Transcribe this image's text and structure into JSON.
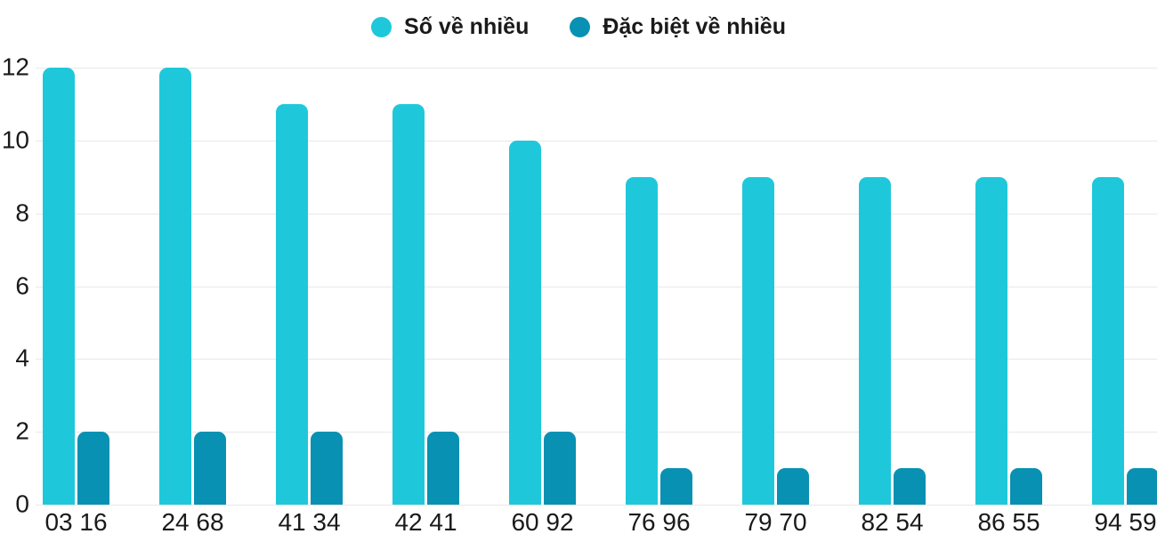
{
  "chart_data": {
    "type": "bar",
    "title": "",
    "xlabel": "",
    "ylabel": "",
    "categories": [
      "03 16",
      "24 68",
      "41 34",
      "42 41",
      "60 92",
      "76 96",
      "79 70",
      "82 54",
      "86 55",
      "94 59"
    ],
    "series": [
      {
        "name": "Số về nhiều",
        "color": "#1EC8DA",
        "values": [
          12,
          12,
          11,
          11,
          10,
          9,
          9,
          9,
          9,
          9
        ]
      },
      {
        "name": "Đặc biệt về nhiều",
        "color": "#0891B2",
        "values": [
          2,
          2,
          2,
          2,
          2,
          1,
          1,
          1,
          1,
          1
        ]
      }
    ],
    "ylim": [
      0,
      12
    ],
    "yticks": [
      0,
      2,
      4,
      6,
      8,
      10,
      12
    ],
    "grid": true,
    "legend_position": "top"
  },
  "colors": {
    "background": "#FFFFFF",
    "gridline": "#E8E8E8",
    "axis_text": "#1A1A1A",
    "legend_text": "#1A1A1A"
  }
}
